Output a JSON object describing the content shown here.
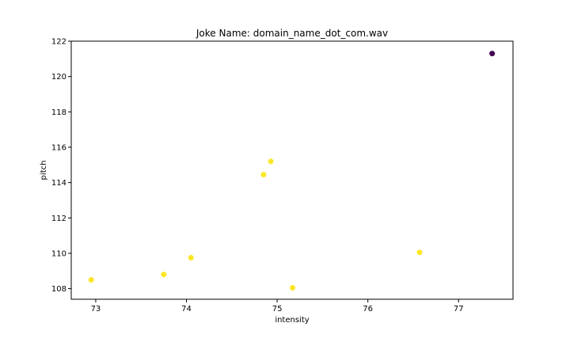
{
  "chart_data": {
    "type": "scatter",
    "title": "Joke Name: domain_name_dot_com.wav",
    "xlabel": "intensity",
    "ylabel": "pitch",
    "xlim": [
      72.73,
      77.6
    ],
    "ylim": [
      107.4,
      122.0
    ],
    "xticks": [
      73,
      74,
      75,
      76,
      77
    ],
    "yticks": [
      108,
      110,
      112,
      114,
      116,
      118,
      120,
      122
    ],
    "grid": false,
    "points": [
      {
        "x": 72.95,
        "y": 108.5,
        "color": "#fde725"
      },
      {
        "x": 73.75,
        "y": 108.8,
        "color": "#fde725"
      },
      {
        "x": 74.05,
        "y": 109.75,
        "color": "#fde725"
      },
      {
        "x": 74.85,
        "y": 114.45,
        "color": "#fde725"
      },
      {
        "x": 74.93,
        "y": 115.2,
        "color": "#fde725"
      },
      {
        "x": 75.17,
        "y": 108.05,
        "color": "#fde725"
      },
      {
        "x": 76.57,
        "y": 110.05,
        "color": "#fde725"
      },
      {
        "x": 77.37,
        "y": 121.3,
        "color": "#440154"
      }
    ]
  }
}
